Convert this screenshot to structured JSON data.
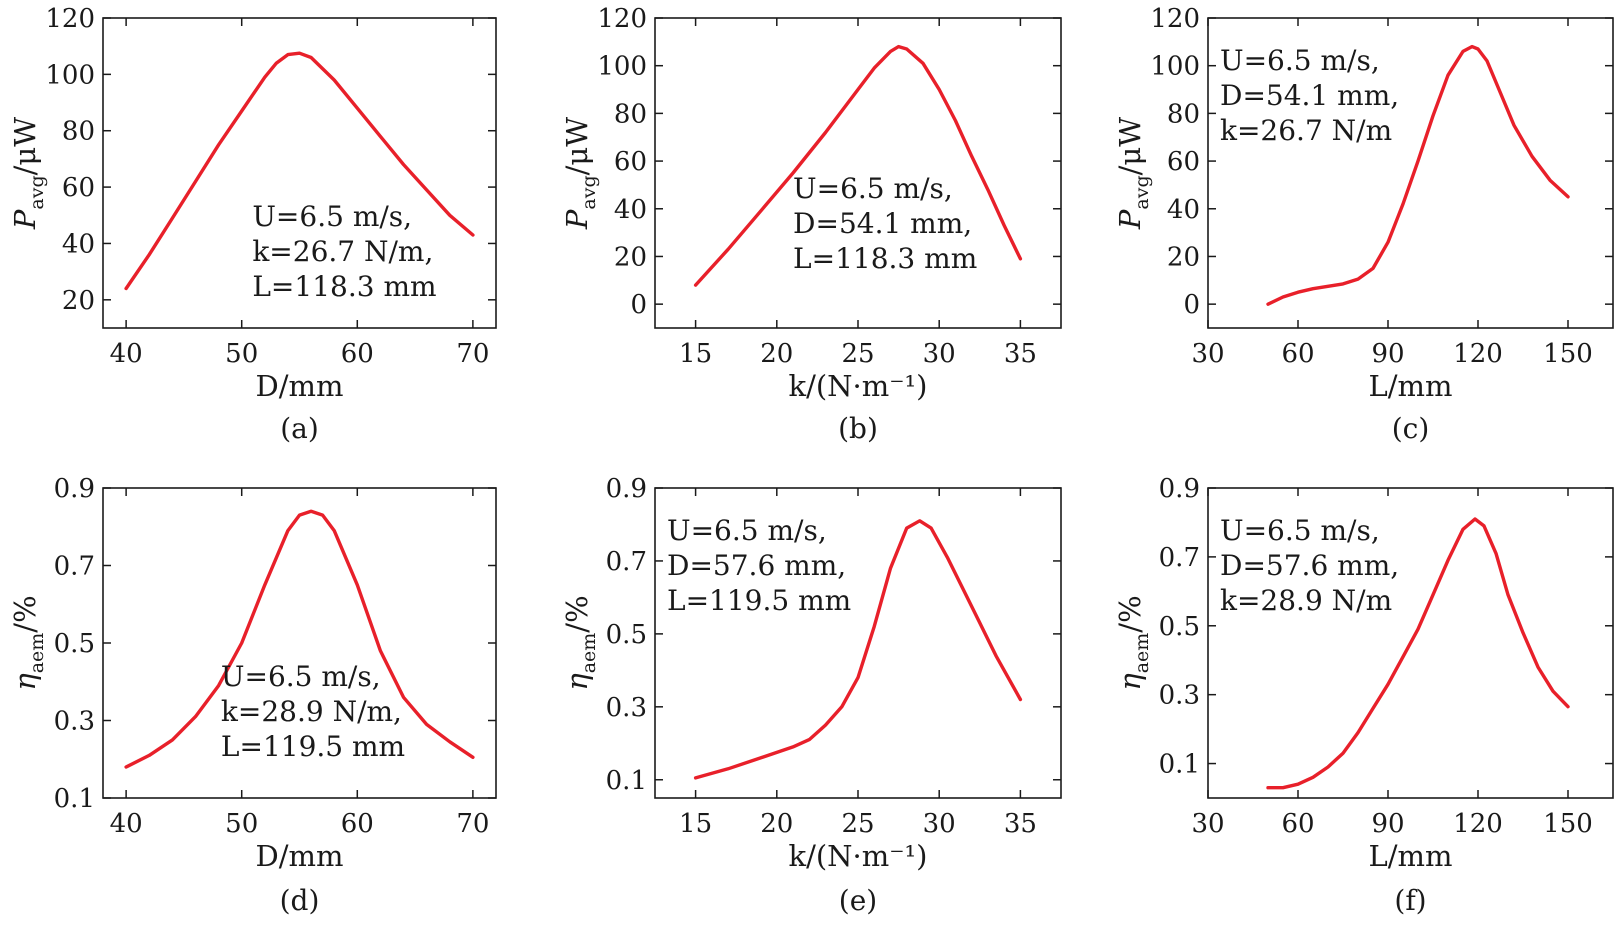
{
  "colors": {
    "curve": "#e8202a",
    "axis": "#1a1a1a"
  },
  "chart_data": [
    {
      "type": "line",
      "caption": "(a)",
      "xlabel": "D/mm",
      "ylabel": "P_avg/μW",
      "ylabel_main": "P",
      "ylabel_sub": "avg",
      "ylabel_unit": "/μW",
      "xlim": [
        38,
        72
      ],
      "ylim": [
        10,
        120
      ],
      "xticks": [
        40,
        50,
        60,
        70
      ],
      "yticks": [
        20,
        40,
        60,
        80,
        100,
        120
      ],
      "grid": false,
      "annotation_position": "bottom-right",
      "annotation": [
        "U=6.5 m/s,",
        "k=26.7 N/m,",
        "L=118.3 mm"
      ],
      "series": [
        {
          "x": [
            40,
            42,
            44,
            46,
            48,
            50,
            52,
            53,
            54,
            55,
            56,
            58,
            60,
            62,
            64,
            66,
            68,
            70
          ],
          "y": [
            24,
            36,
            49,
            62,
            75,
            87,
            99,
            104,
            107,
            107.5,
            106,
            98,
            88,
            78,
            68,
            59,
            50,
            43
          ]
        }
      ]
    },
    {
      "type": "line",
      "caption": "(b)",
      "xlabel": "k/(N·m⁻¹)",
      "ylabel": "P_avg/μW",
      "ylabel_main": "P",
      "ylabel_sub": "avg",
      "ylabel_unit": "/μW",
      "xlim": [
        12.5,
        37.5
      ],
      "ylim": [
        -10,
        120
      ],
      "xticks": [
        15,
        20,
        25,
        30,
        35
      ],
      "yticks": [
        0,
        20,
        40,
        60,
        80,
        100,
        120
      ],
      "grid": false,
      "annotation_position": "bottom-center",
      "annotation": [
        "U=6.5 m/s,",
        "D=54.1 mm,",
        "L=118.3 mm"
      ],
      "series": [
        {
          "x": [
            15,
            17,
            19,
            21,
            23,
            25,
            26,
            27,
            27.5,
            28,
            29,
            30,
            31,
            32,
            33,
            34,
            35
          ],
          "y": [
            8,
            23,
            39,
            55,
            72,
            90,
            99,
            106,
            108,
            107,
            101,
            90,
            77,
            62,
            48,
            33,
            19
          ]
        }
      ]
    },
    {
      "type": "line",
      "caption": "(c)",
      "xlabel": "L/mm",
      "ylabel": "P_avg/μW",
      "ylabel_main": "P",
      "ylabel_sub": "avg",
      "ylabel_unit": "/μW",
      "xlim": [
        30,
        165
      ],
      "ylim": [
        -10,
        120
      ],
      "xticks": [
        30,
        60,
        90,
        120,
        150
      ],
      "yticks": [
        0,
        20,
        40,
        60,
        80,
        100,
        120
      ],
      "grid": false,
      "annotation_position": "top-left",
      "annotation": [
        "U=6.5 m/s,",
        "D=54.1 mm,",
        "k=26.7 N/m"
      ],
      "series": [
        {
          "x": [
            50,
            55,
            60,
            65,
            70,
            75,
            80,
            85,
            90,
            95,
            100,
            105,
            110,
            115,
            118,
            120,
            123,
            127,
            132,
            138,
            144,
            150
          ],
          "y": [
            0,
            3,
            5,
            6.5,
            7.5,
            8.5,
            10.5,
            15,
            26,
            42,
            60,
            79,
            96,
            106,
            108,
            107,
            102,
            90,
            75,
            62,
            52,
            45
          ]
        }
      ]
    },
    {
      "type": "line",
      "caption": "(d)",
      "xlabel": "D/mm",
      "ylabel": "η_aem/%",
      "ylabel_main": "η",
      "ylabel_sub": "aem",
      "ylabel_unit": "/%",
      "xlim": [
        38,
        72
      ],
      "ylim": [
        0.1,
        0.9
      ],
      "xticks": [
        40,
        50,
        60,
        70
      ],
      "yticks": [
        0.1,
        0.3,
        0.5,
        0.7,
        0.9
      ],
      "grid": false,
      "annotation_position": "bottom-center",
      "annotation": [
        "U=6.5 m/s,",
        "k=28.9 N/m,",
        "L=119.5 mm"
      ],
      "series": [
        {
          "x": [
            40,
            42,
            44,
            46,
            48,
            50,
            52,
            54,
            55,
            56,
            57,
            58,
            60,
            62,
            64,
            66,
            68,
            70
          ],
          "y": [
            0.18,
            0.21,
            0.25,
            0.31,
            0.39,
            0.5,
            0.65,
            0.79,
            0.83,
            0.84,
            0.83,
            0.79,
            0.65,
            0.48,
            0.36,
            0.29,
            0.245,
            0.205
          ]
        }
      ]
    },
    {
      "type": "line",
      "caption": "(e)",
      "xlabel": "k/(N·m⁻¹)",
      "ylabel": "η_aem/%",
      "ylabel_main": "η",
      "ylabel_sub": "aem",
      "ylabel_unit": "/%",
      "xlim": [
        12.5,
        37.5
      ],
      "ylim": [
        0.05,
        0.9
      ],
      "xticks": [
        15,
        20,
        25,
        30,
        35
      ],
      "yticks": [
        0.1,
        0.3,
        0.5,
        0.7,
        0.9
      ],
      "grid": false,
      "annotation_position": "top-left",
      "annotation": [
        "U=6.5 m/s,",
        "D=57.6 mm,",
        "L=119.5 mm"
      ],
      "series": [
        {
          "x": [
            15,
            17,
            19,
            21,
            22,
            23,
            24,
            25,
            26,
            27,
            28,
            28.8,
            29.5,
            30.5,
            31.5,
            32.5,
            33.5,
            35
          ],
          "y": [
            0.105,
            0.13,
            0.16,
            0.19,
            0.21,
            0.25,
            0.3,
            0.38,
            0.52,
            0.68,
            0.79,
            0.81,
            0.79,
            0.71,
            0.62,
            0.53,
            0.44,
            0.32
          ]
        }
      ]
    },
    {
      "type": "line",
      "caption": "(f)",
      "xlabel": "L/mm",
      "ylabel": "η_aem/%",
      "ylabel_main": "η",
      "ylabel_sub": "aem",
      "ylabel_unit": "/%",
      "xlim": [
        30,
        165
      ],
      "ylim": [
        0.0,
        0.9
      ],
      "xticks": [
        30,
        60,
        90,
        120,
        150
      ],
      "yticks": [
        0.1,
        0.3,
        0.5,
        0.7,
        0.9
      ],
      "grid": false,
      "annotation_position": "top-left",
      "annotation": [
        "U=6.5 m/s,",
        "D=57.6 mm,",
        "k=28.9 N/m"
      ],
      "series": [
        {
          "x": [
            50,
            55,
            60,
            65,
            70,
            75,
            80,
            85,
            90,
            95,
            100,
            105,
            110,
            115,
            119,
            122,
            126,
            130,
            135,
            140,
            145,
            150
          ],
          "y": [
            0.03,
            0.03,
            0.04,
            0.06,
            0.09,
            0.13,
            0.19,
            0.26,
            0.33,
            0.41,
            0.49,
            0.59,
            0.69,
            0.78,
            0.81,
            0.79,
            0.71,
            0.59,
            0.48,
            0.38,
            0.31,
            0.265
          ]
        }
      ]
    }
  ]
}
